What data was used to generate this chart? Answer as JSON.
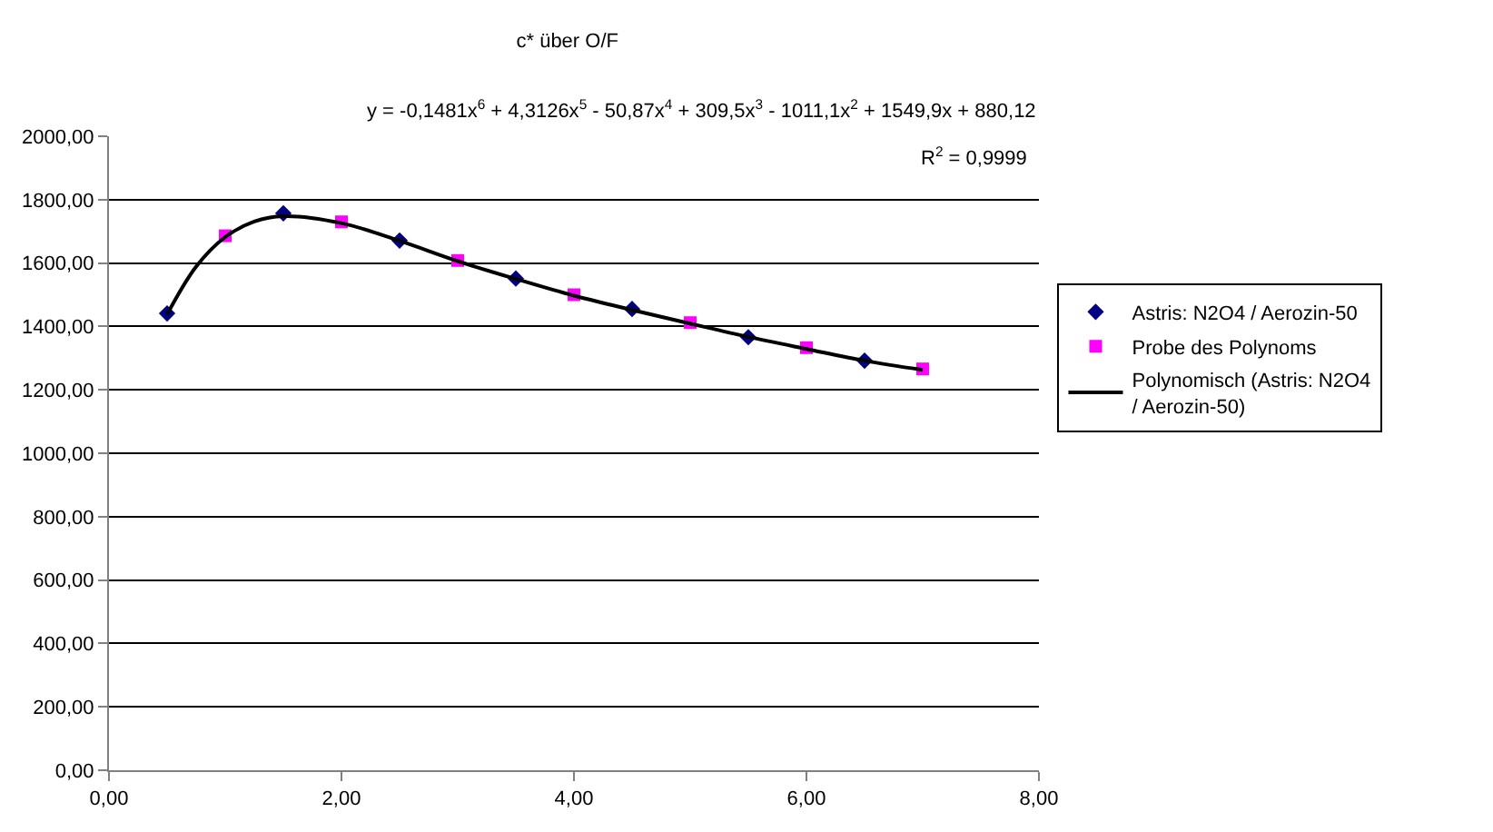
{
  "chart_data": {
    "type": "scatter",
    "title": "c* über O/F",
    "series": [
      {
        "name": "Astris: N2O4 / Aerozin-50",
        "marker": "diamond",
        "color": "#000080",
        "x": [
          0.5,
          1.5,
          2.5,
          3.5,
          4.5,
          5.5,
          6.5
        ],
        "values": [
          1441,
          1757,
          1671,
          1551,
          1455,
          1366,
          1292
        ]
      },
      {
        "name": "Probe des Polynoms",
        "marker": "square",
        "color": "#ff00ff",
        "x": [
          1,
          2,
          3,
          4,
          5,
          6,
          7
        ],
        "values": [
          1686,
          1730,
          1608,
          1500,
          1412,
          1333,
          1266
        ]
      },
      {
        "name": "Polynomisch (Astris: N2O4 / Aerozin-50)",
        "type": "line",
        "marker": "none",
        "line_style": "solid",
        "color": "#000000",
        "x": [
          0.5,
          0.75,
          1,
          1.25,
          1.5,
          2,
          2.5,
          3,
          3.5,
          4,
          4.5,
          5,
          5.5,
          6,
          6.5,
          7
        ],
        "values": [
          1438,
          1589,
          1682,
          1731,
          1748,
          1726,
          1670,
          1606,
          1550,
          1497,
          1452,
          1409,
          1367,
          1329,
          1292,
          1263
        ]
      }
    ],
    "annotations": [
      "y = -0,1481x$^{6}$ + 4,3126x$^{5}$ - 50,87x$^{4}$ + 309,5x$^{3}$ - 1011,1x$^{2}$ + 1549,9x + 880,12",
      "R$^{2}$ = 0,9999"
    ],
    "xlim": [
      0,
      8
    ],
    "xticks": [
      {
        "value": 0,
        "label": "0,00"
      },
      {
        "value": 2,
        "label": "2,00"
      },
      {
        "value": 4,
        "label": "4,00"
      },
      {
        "value": 6,
        "label": "6,00"
      },
      {
        "value": 8,
        "label": "8,00"
      }
    ],
    "ylim": [
      0,
      2000
    ],
    "yticks": [
      {
        "value": 0,
        "label": "0,00"
      },
      {
        "value": 200,
        "label": "200,00"
      },
      {
        "value": 400,
        "label": "400,00"
      },
      {
        "value": 600,
        "label": "600,00"
      },
      {
        "value": 800,
        "label": "800,00"
      },
      {
        "value": 1000,
        "label": "1000,00"
      },
      {
        "value": 1200,
        "label": "1200,00"
      },
      {
        "value": 1400,
        "label": "1400,00"
      },
      {
        "value": 1600,
        "label": "1600,00"
      },
      {
        "value": 1800,
        "label": "1800,00"
      },
      {
        "value": 2000,
        "label": "2000,00"
      }
    ],
    "grid": "y",
    "legend": "right"
  }
}
